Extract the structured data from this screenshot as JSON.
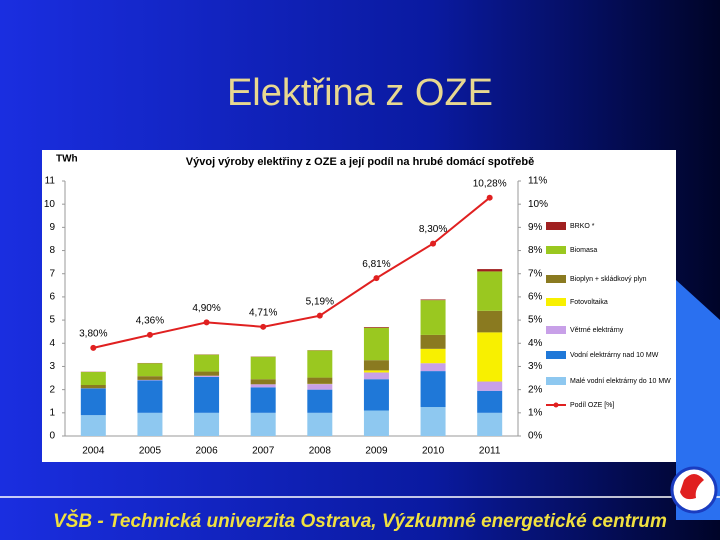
{
  "slide_title": "Elektřina z OZE",
  "footer": "VŠB - Technická univerzita Ostrava, Výzkumné energetické centrum",
  "chart_data": {
    "type": "bar",
    "stacked": true,
    "title": "Vývoj výroby elektřiny z OZE a její podíl na hrubé domácí spotřebě",
    "y_label": "TWh",
    "categories": [
      "2004",
      "2005",
      "2006",
      "2007",
      "2008",
      "2009",
      "2010",
      "2011"
    ],
    "ylim": [
      0,
      11
    ],
    "yticks": [
      0,
      1,
      2,
      3,
      4,
      5,
      6,
      7,
      8,
      9,
      10,
      11
    ],
    "y2lim": [
      0,
      11
    ],
    "y2ticks": [
      {
        "value": 0,
        "label": "0%"
      },
      {
        "value": 1,
        "label": "1%"
      },
      {
        "value": 2,
        "label": "2%"
      },
      {
        "value": 3,
        "label": "3%"
      },
      {
        "value": 4,
        "label": "4%"
      },
      {
        "value": 5,
        "label": "5%"
      },
      {
        "value": 6,
        "label": "6%"
      },
      {
        "value": 7,
        "label": "7%"
      },
      {
        "value": 8,
        "label": "8%"
      },
      {
        "value": 9,
        "label": "9%"
      },
      {
        "value": 10,
        "label": "10%"
      },
      {
        "value": 11,
        "label": "11%"
      }
    ],
    "grid": false,
    "series": [
      {
        "name": "BRKO *",
        "color": "#a02020",
        "values": [
          0.01,
          0.01,
          0.01,
          0.01,
          0.01,
          0.03,
          0.03,
          0.1
        ]
      },
      {
        "name": "Biomasa",
        "color": "#9ac820",
        "values": [
          0.56,
          0.56,
          0.73,
          0.97,
          1.17,
          1.4,
          1.5,
          1.7
        ]
      },
      {
        "name": "Bioplyn + skládkový plyn",
        "color": "#8a7a20",
        "values": [
          0.14,
          0.16,
          0.18,
          0.22,
          0.27,
          0.44,
          0.6,
          0.93
        ]
      },
      {
        "name": "Fotovoltaika",
        "color": "#f8f000",
        "values": [
          0,
          0,
          0,
          0,
          0.01,
          0.09,
          0.62,
          2.12
        ]
      },
      {
        "name": "Větrné elektrárny",
        "color": "#c8a0e8",
        "values": [
          0.01,
          0.02,
          0.05,
          0.13,
          0.24,
          0.29,
          0.34,
          0.4
        ]
      },
      {
        "name": "Vodní elektrárny nad 10 MW",
        "color": "#1f78d8",
        "values": [
          1.15,
          1.4,
          1.55,
          1.1,
          1.0,
          1.35,
          1.55,
          0.95
        ]
      },
      {
        "name": "Malé vodní elektrárny do 10 MW",
        "color": "#8ec8f0",
        "values": [
          0.9,
          1.0,
          1.0,
          1.0,
          1.0,
          1.1,
          1.25,
          1.0
        ]
      },
      {
        "name": "Podíl OZE [%]",
        "color": "#e02020",
        "type": "line",
        "axis": "y2",
        "values": [
          3.8,
          4.36,
          4.9,
          4.71,
          5.19,
          6.81,
          8.3,
          10.28
        ],
        "value_labels": [
          "3,80%",
          "4,36%",
          "4,90%",
          "4,71%",
          "5,19%",
          "6,81%",
          "8,30%",
          "10,28%"
        ]
      }
    ]
  }
}
